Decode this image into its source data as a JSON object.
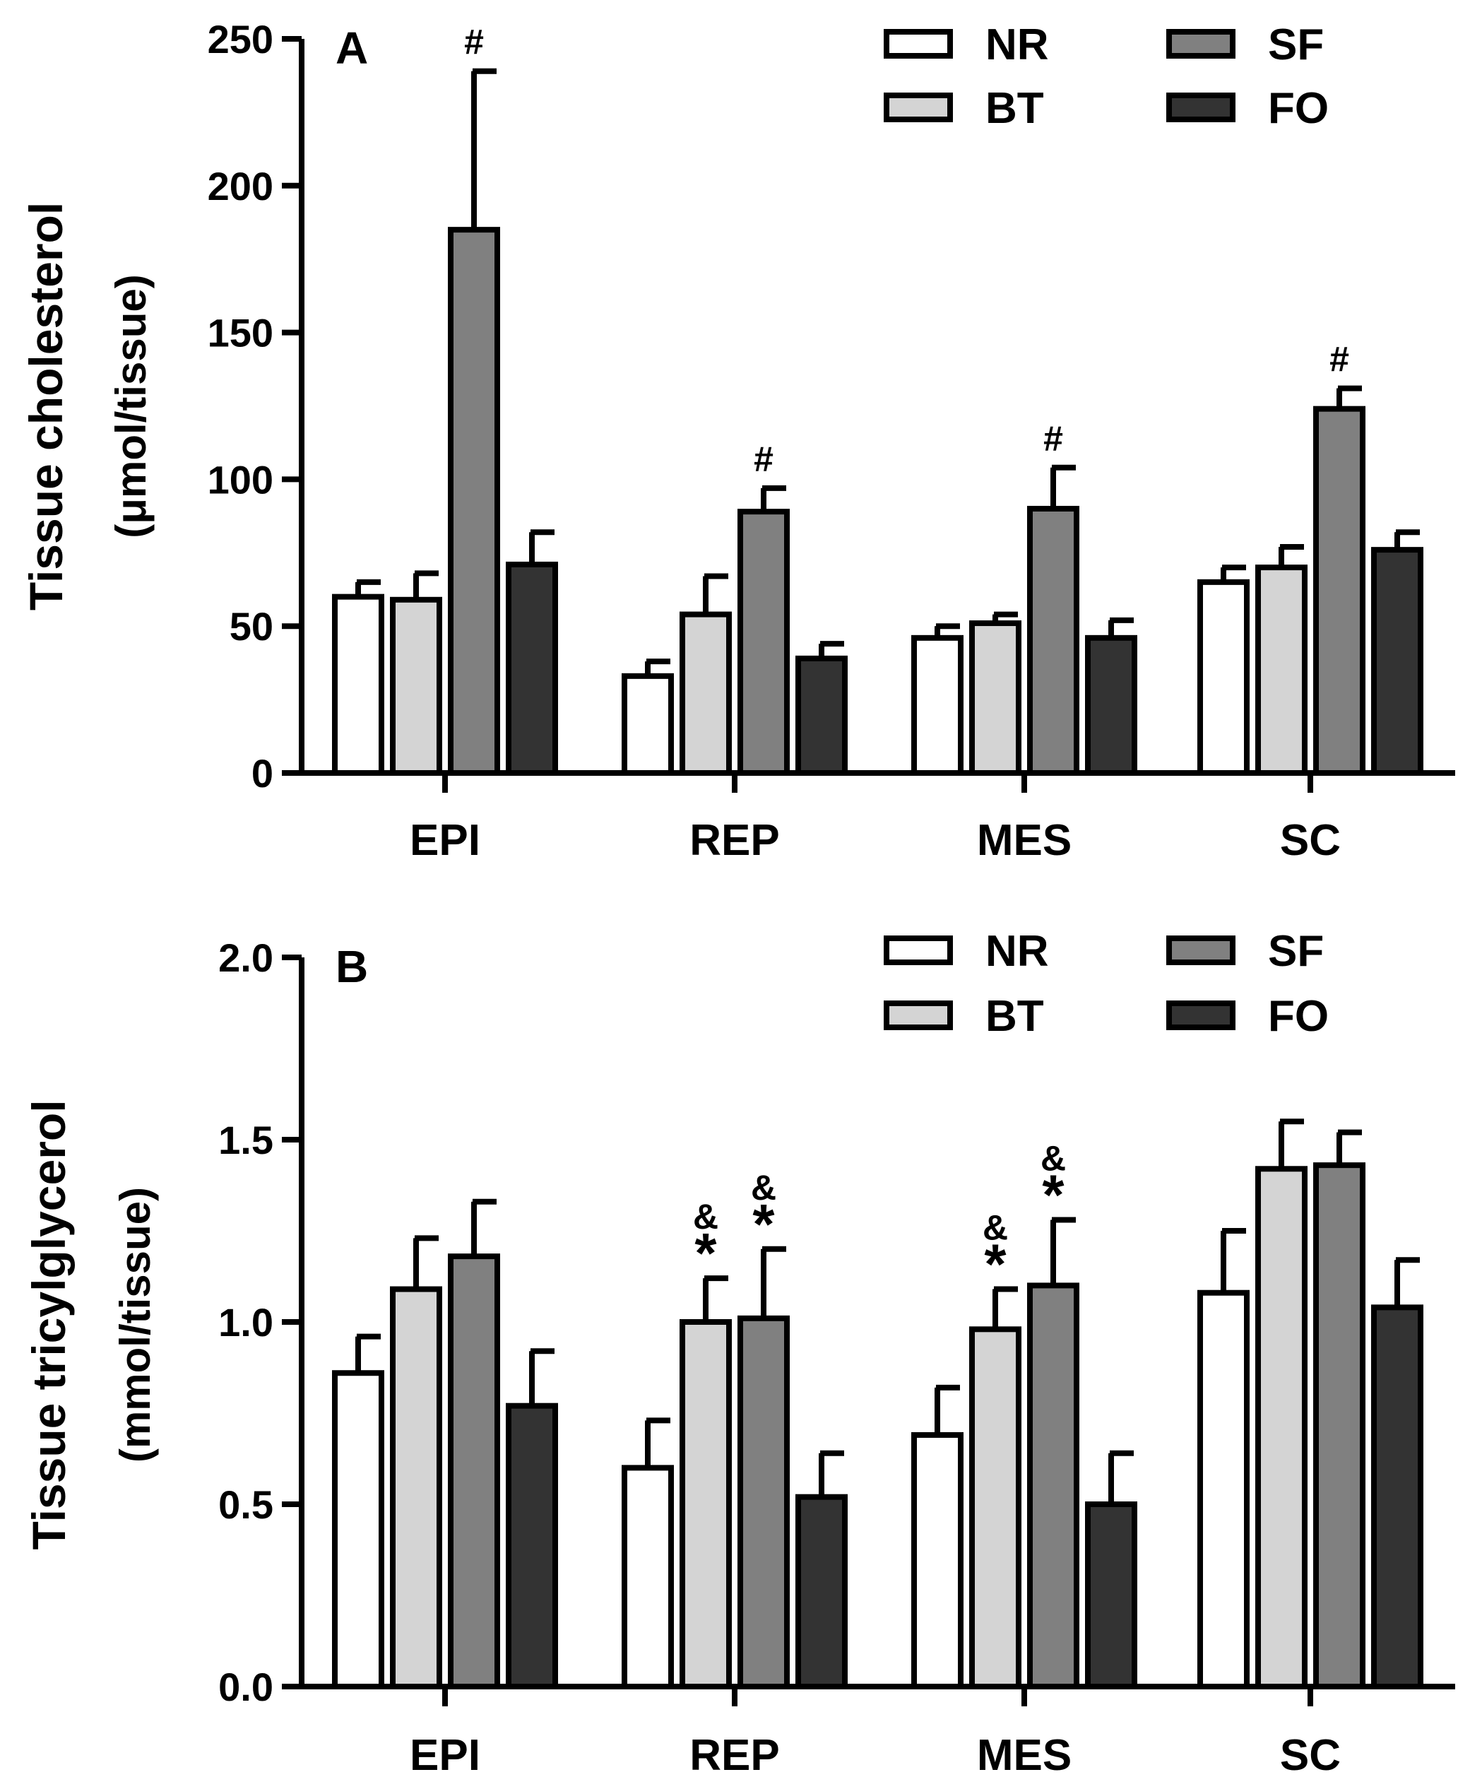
{
  "chart_data": [
    {
      "type": "bar",
      "panel_label": "A",
      "ylabel_line1": "Tissue cholesterol",
      "ylabel_line2": "(μmol/tissue)",
      "xlabel": "",
      "categories": [
        "EPI",
        "REP",
        "MES",
        "SC"
      ],
      "ylim": [
        0,
        250
      ],
      "yticks": [
        0,
        50,
        100,
        150,
        200,
        250
      ],
      "ytick_labels": [
        "0",
        "50",
        "100",
        "150",
        "200",
        "250"
      ],
      "grid": false,
      "legend_position": "top-right",
      "legend": [
        "NR",
        "BT",
        "SF",
        "FO"
      ],
      "series": [
        {
          "name": "NR",
          "color": "#ffffff",
          "values": [
            60,
            33,
            46,
            65
          ],
          "errors": [
            5,
            5,
            4,
            5
          ]
        },
        {
          "name": "BT",
          "color": "#d4d4d4",
          "values": [
            59,
            54,
            51,
            70
          ],
          "errors": [
            9,
            13,
            3,
            7
          ]
        },
        {
          "name": "SF",
          "color": "#808080",
          "values": [
            185,
            89,
            90,
            124
          ],
          "errors": [
            54,
            8,
            14,
            7
          ]
        },
        {
          "name": "FO",
          "color": "#333333",
          "values": [
            71,
            39,
            46,
            76
          ],
          "errors": [
            11,
            5,
            6,
            6
          ]
        }
      ],
      "annotations": [
        {
          "series": "SF",
          "category": "EPI",
          "text": "#"
        },
        {
          "series": "SF",
          "category": "REP",
          "text": "#"
        },
        {
          "series": "SF",
          "category": "MES",
          "text": "#"
        },
        {
          "series": "SF",
          "category": "SC",
          "text": "#"
        }
      ]
    },
    {
      "type": "bar",
      "panel_label": "B",
      "ylabel_line1": "Tissue tricylglycerol",
      "ylabel_line2": "(mmol/tissue)",
      "xlabel": "",
      "categories": [
        "EPI",
        "REP",
        "MES",
        "SC"
      ],
      "ylim": [
        0,
        2.0
      ],
      "yticks": [
        0,
        0.5,
        1.0,
        1.5,
        2.0
      ],
      "ytick_labels": [
        "0.0",
        "0.5",
        "1.0",
        "1.5",
        "2.0"
      ],
      "grid": false,
      "legend_position": "top-right",
      "legend": [
        "NR",
        "BT",
        "SF",
        "FO"
      ],
      "series": [
        {
          "name": "NR",
          "color": "#ffffff",
          "values": [
            0.86,
            0.6,
            0.69,
            1.08
          ],
          "errors": [
            0.1,
            0.13,
            0.13,
            0.17
          ]
        },
        {
          "name": "BT",
          "color": "#d4d4d4",
          "values": [
            1.09,
            1.0,
            0.98,
            1.42
          ],
          "errors": [
            0.14,
            0.12,
            0.11,
            0.13
          ]
        },
        {
          "name": "SF",
          "color": "#808080",
          "values": [
            1.18,
            1.01,
            1.1,
            1.43
          ],
          "errors": [
            0.15,
            0.19,
            0.18,
            0.09
          ]
        },
        {
          "name": "FO",
          "color": "#333333",
          "values": [
            0.77,
            0.52,
            0.5,
            1.04
          ],
          "errors": [
            0.15,
            0.12,
            0.14,
            0.13
          ]
        }
      ],
      "annotations": [
        {
          "series": "BT",
          "category": "REP",
          "text": "*",
          "text2": "&"
        },
        {
          "series": "SF",
          "category": "REP",
          "text": "*",
          "text2": "&"
        },
        {
          "series": "BT",
          "category": "MES",
          "text": "*",
          "text2": "&"
        },
        {
          "series": "SF",
          "category": "MES",
          "text": "*",
          "text2": "&"
        }
      ]
    }
  ]
}
